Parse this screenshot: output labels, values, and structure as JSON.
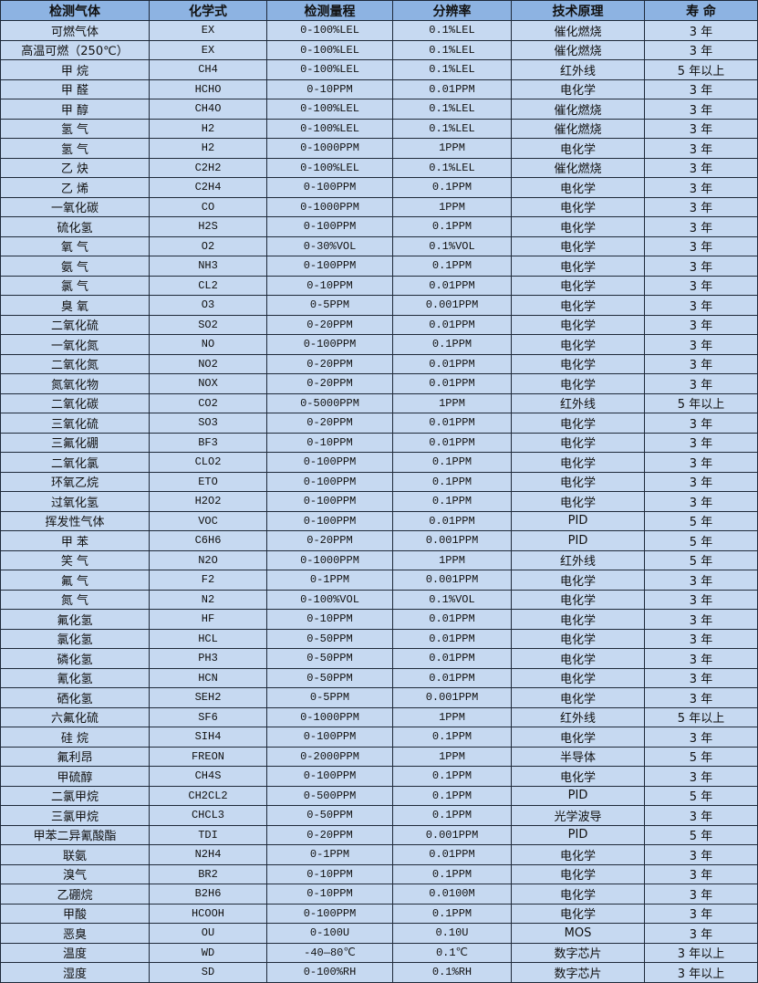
{
  "colors": {
    "header_bg": "#8db3e2",
    "row_bg": "#c6d9f1",
    "border": "#1f2a3a"
  },
  "headers": [
    "检测气体",
    "化学式",
    "检测量程",
    "分辨率",
    "技术原理",
    "寿 命"
  ],
  "rows": [
    [
      "可燃气体",
      "EX",
      "0-100%LEL",
      "0.1%LEL",
      "催化燃烧",
      "3 年"
    ],
    [
      "高温可燃（250℃）",
      "EX",
      "0-100%LEL",
      "0.1%LEL",
      "催化燃烧",
      "3 年"
    ],
    [
      "甲 烷",
      "CH4",
      "0-100%LEL",
      "0.1%LEL",
      "红外线",
      "5 年以上"
    ],
    [
      "甲 醛",
      "HCHO",
      "0-10PPM",
      "0.01PPM",
      "电化学",
      "3 年"
    ],
    [
      "甲 醇",
      "CH4O",
      "0-100%LEL",
      "0.1%LEL",
      "催化燃烧",
      "3 年"
    ],
    [
      "氢 气",
      "H2",
      "0-100%LEL",
      "0.1%LEL",
      "催化燃烧",
      "3 年"
    ],
    [
      "氢 气",
      "H2",
      "0-1000PPM",
      "1PPM",
      "电化学",
      "3 年"
    ],
    [
      "乙 炔",
      "C2H2",
      "0-100%LEL",
      "0.1%LEL",
      "催化燃烧",
      "3 年"
    ],
    [
      "乙 烯",
      "C2H4",
      "0-100PPM",
      "0.1PPM",
      "电化学",
      "3 年"
    ],
    [
      "一氧化碳",
      "CO",
      "0-1000PPM",
      "1PPM",
      "电化学",
      "3 年"
    ],
    [
      "硫化氢",
      "H2S",
      "0-100PPM",
      "0.1PPM",
      "电化学",
      "3 年"
    ],
    [
      "氧 气",
      "O2",
      "0-30%VOL",
      "0.1%VOL",
      "电化学",
      "3 年"
    ],
    [
      "氨 气",
      "NH3",
      "0-100PPM",
      "0.1PPM",
      "电化学",
      "3 年"
    ],
    [
      "氯 气",
      "CL2",
      "0-10PPM",
      "0.01PPM",
      "电化学",
      "3 年"
    ],
    [
      "臭 氧",
      "O3",
      "0-5PPM",
      "0.001PPM",
      "电化学",
      "3 年"
    ],
    [
      "二氧化硫",
      "SO2",
      "0-20PPM",
      "0.01PPM",
      "电化学",
      "3 年"
    ],
    [
      "一氧化氮",
      "NO",
      "0-100PPM",
      "0.1PPM",
      "电化学",
      "3 年"
    ],
    [
      "二氧化氮",
      "NO2",
      "0-20PPM",
      "0.01PPM",
      "电化学",
      "3 年"
    ],
    [
      "氮氧化物",
      "NOX",
      "0-20PPM",
      "0.01PPM",
      "电化学",
      "3 年"
    ],
    [
      "二氧化碳",
      "CO2",
      "0-5000PPM",
      "1PPM",
      "红外线",
      "5 年以上"
    ],
    [
      "三氧化硫",
      "SO3",
      "0-20PPM",
      "0.01PPM",
      "电化学",
      "3 年"
    ],
    [
      "三氟化硼",
      "BF3",
      "0-10PPM",
      "0.01PPM",
      "电化学",
      "3 年"
    ],
    [
      "二氧化氯",
      "CLO2",
      "0-100PPM",
      "0.1PPM",
      "电化学",
      "3 年"
    ],
    [
      "环氧乙烷",
      "ETO",
      "0-100PPM",
      "0.1PPM",
      "电化学",
      "3 年"
    ],
    [
      "过氧化氢",
      "H2O2",
      "0-100PPM",
      "0.1PPM",
      "电化学",
      "3 年"
    ],
    [
      "挥发性气体",
      "VOC",
      "0-100PPM",
      "0.01PPM",
      "PID",
      "5 年"
    ],
    [
      "甲 苯",
      "C6H6",
      "0-20PPM",
      "0.001PPM",
      "PID",
      "5 年"
    ],
    [
      "笑 气",
      "N2O",
      "0-1000PPM",
      "1PPM",
      "红外线",
      "5 年"
    ],
    [
      "氟 气",
      "F2",
      "0-1PPM",
      "0.001PPM",
      "电化学",
      "3 年"
    ],
    [
      "氮 气",
      "N2",
      "0-100%VOL",
      "0.1%VOL",
      "电化学",
      "3 年"
    ],
    [
      "氟化氢",
      "HF",
      "0-10PPM",
      "0.01PPM",
      "电化学",
      "3 年"
    ],
    [
      "氯化氢",
      "HCL",
      "0-50PPM",
      "0.01PPM",
      "电化学",
      "3 年"
    ],
    [
      "磷化氢",
      "PH3",
      "0-50PPM",
      "0.01PPM",
      "电化学",
      "3 年"
    ],
    [
      "氰化氢",
      "HCN",
      "0-50PPM",
      "0.01PPM",
      "电化学",
      "3 年"
    ],
    [
      "硒化氢",
      "SEH2",
      "0-5PPM",
      "0.001PPM",
      "电化学",
      "3 年"
    ],
    [
      "六氟化硫",
      "SF6",
      "0-1000PPM",
      "1PPM",
      "红外线",
      "5 年以上"
    ],
    [
      "硅 烷",
      "SIH4",
      "0-100PPM",
      "0.1PPM",
      "电化学",
      "3 年"
    ],
    [
      "氟利昂",
      "FREON",
      "0-2000PPM",
      "1PPM",
      "半导体",
      "5 年"
    ],
    [
      "甲硫醇",
      "CH4S",
      "0-100PPM",
      "0.1PPM",
      "电化学",
      "3 年"
    ],
    [
      "二氯甲烷",
      "CH2CL2",
      "0-500PPM",
      "0.1PPM",
      "PID",
      "5 年"
    ],
    [
      "三氯甲烷",
      "CHCL3",
      "0-50PPM",
      "0.1PPM",
      "光学波导",
      "3 年"
    ],
    [
      "甲苯二异氰酸酯",
      "TDI",
      "0-20PPM",
      "0.001PPM",
      "PID",
      "5 年"
    ],
    [
      "联氨",
      "N2H4",
      "0-1PPM",
      "0.01PPM",
      "电化学",
      "3 年"
    ],
    [
      "溴气",
      "BR2",
      "0-10PPM",
      "0.1PPM",
      "电化学",
      "3 年"
    ],
    [
      "乙硼烷",
      "B2H6",
      "0-10PPM",
      "0.0100M",
      "电化学",
      "3 年"
    ],
    [
      "甲酸",
      "HCOOH",
      "0-100PPM",
      "0.1PPM",
      "电化学",
      "3 年"
    ],
    [
      "恶臭",
      "OU",
      "0-100U",
      "0.10U",
      "MOS",
      "3 年"
    ],
    [
      "温度",
      "WD",
      "-40—80℃",
      "0.1℃",
      "数字芯片",
      "3 年以上"
    ],
    [
      "湿度",
      "SD",
      "0-100%RH",
      "0.1%RH",
      "数字芯片",
      "3 年以上"
    ]
  ]
}
